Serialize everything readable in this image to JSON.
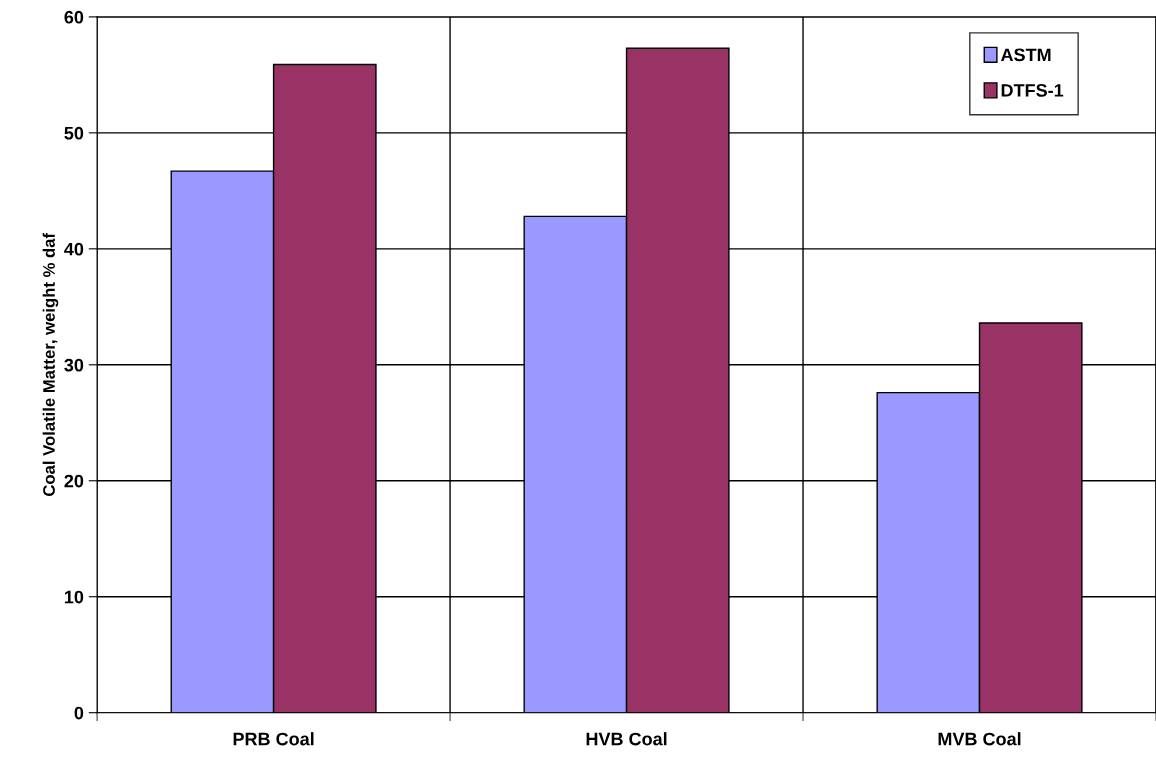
{
  "chart_data": {
    "type": "bar",
    "ylabel": "Coal Volatile Matter, weight % daf",
    "categories": [
      "PRB Coal",
      "HVB Coal",
      "MVB Coal"
    ],
    "series": [
      {
        "name": "ASTM",
        "color": "#9999ff",
        "values": [
          46.7,
          42.8,
          27.6
        ]
      },
      {
        "name": "DTFS-1",
        "color": "#993366",
        "values": [
          55.9,
          57.3,
          33.6
        ]
      }
    ],
    "ylim": [
      0,
      60
    ],
    "yticks": [
      0,
      10,
      20,
      30,
      40,
      50,
      60
    ],
    "grid": true,
    "legend": "top right"
  }
}
